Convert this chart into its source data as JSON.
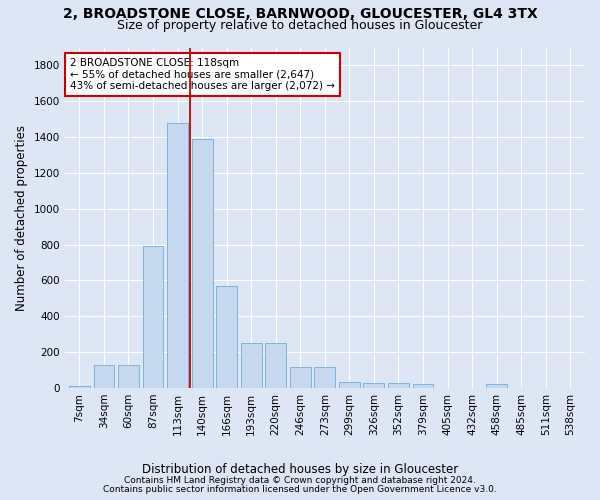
{
  "title": "2, BROADSTONE CLOSE, BARNWOOD, GLOUCESTER, GL4 3TX",
  "subtitle": "Size of property relative to detached houses in Gloucester",
  "xlabel": "Distribution of detached houses by size in Gloucester",
  "ylabel": "Number of detached properties",
  "bar_values": [
    10,
    130,
    130,
    790,
    1480,
    1390,
    570,
    250,
    250,
    115,
    115,
    35,
    30,
    30,
    20,
    0,
    0,
    20,
    0,
    0,
    0
  ],
  "bar_labels": [
    "7sqm",
    "34sqm",
    "60sqm",
    "87sqm",
    "113sqm",
    "140sqm",
    "166sqm",
    "193sqm",
    "220sqm",
    "246sqm",
    "273sqm",
    "299sqm",
    "326sqm",
    "352sqm",
    "379sqm",
    "405sqm",
    "432sqm",
    "458sqm",
    "485sqm",
    "511sqm",
    "538sqm"
  ],
  "bar_color": "#c5d8f0",
  "bar_edge_color": "#6baed6",
  "vline_x": 4.5,
  "vline_color": "#cc0000",
  "annotation_title": "2 BROADSTONE CLOSE: 118sqm",
  "annotation_line1": "← 55% of detached houses are smaller (2,647)",
  "annotation_line2": "43% of semi-detached houses are larger (2,072) →",
  "annotation_box_color": "white",
  "annotation_box_edge_color": "#cc0000",
  "ylim": [
    0,
    1900
  ],
  "yticks": [
    0,
    200,
    400,
    600,
    800,
    1000,
    1200,
    1400,
    1600,
    1800
  ],
  "footer1": "Contains HM Land Registry data © Crown copyright and database right 2024.",
  "footer2": "Contains public sector information licensed under the Open Government Licence v3.0.",
  "background_color": "#dce6f5",
  "plot_background": "#dce6f5",
  "title_fontsize": 10,
  "subtitle_fontsize": 9,
  "axis_label_fontsize": 8.5,
  "tick_fontsize": 7.5,
  "footer_fontsize": 6.5,
  "annot_fontsize": 7.5
}
